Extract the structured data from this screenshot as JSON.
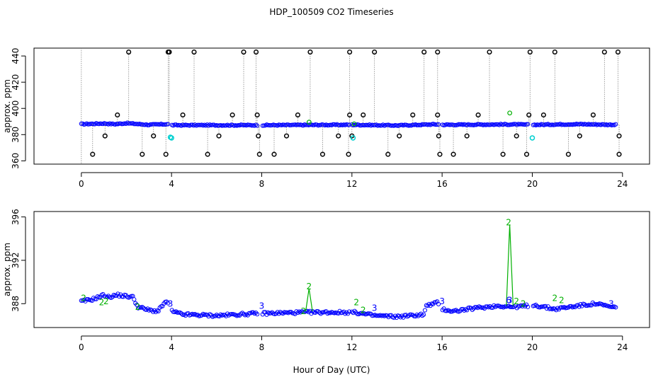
{
  "title": "HDP_100509  CO2 Timeseries",
  "xlabel": "Hour of Day (UTC)",
  "colors": {
    "raw_point": "#000000",
    "cal_point": "#00d0d0",
    "main_point": "#0000ff",
    "flag": "#00b000",
    "spike": "#888888"
  },
  "chart_data": [
    {
      "type": "scatter",
      "ylabel": "approx. ppm",
      "xlim": [
        -2.1,
        25.2
      ],
      "ylim": [
        357.5,
        446
      ],
      "xticks": [
        0,
        4,
        8,
        12,
        16,
        20,
        24
      ],
      "yticks": [
        360,
        380,
        400,
        420,
        440
      ],
      "main_level": [
        [
          0,
          388
        ],
        [
          1,
          388.5
        ],
        [
          1.5,
          388
        ],
        [
          2,
          388.7
        ],
        [
          3,
          387.5
        ],
        [
          3.8,
          388
        ],
        [
          4,
          387.2
        ],
        [
          8,
          387.2
        ],
        [
          12,
          387.5
        ],
        [
          14,
          387
        ],
        [
          15.6,
          387.8
        ],
        [
          15.9,
          387.8
        ],
        [
          16,
          387.5
        ],
        [
          19,
          387.8
        ],
        [
          20,
          387.5
        ],
        [
          22,
          388
        ],
        [
          23.7,
          387.5
        ]
      ],
      "gaps": [
        [
          3.9,
          4.0
        ],
        [
          7.85,
          8.0
        ],
        [
          11.9,
          12.0
        ],
        [
          15.85,
          16.0
        ],
        [
          19.85,
          20.0
        ]
      ],
      "high_points": [
        2.1,
        3.85,
        3.9,
        5.0,
        7.2,
        7.75,
        10.15,
        11.9,
        13.0,
        15.2,
        15.8,
        18.1,
        19.9,
        21.0,
        23.2,
        23.8
      ],
      "low_points": [
        0.5,
        2.7,
        3.75,
        5.6,
        7.9,
        8.55,
        10.7,
        11.85,
        13.6,
        15.9,
        16.5,
        18.7,
        19.75,
        21.6,
        23.85
      ],
      "mid_high_points": [
        1.6,
        4.5,
        6.7,
        7.8,
        9.6,
        11.9,
        12.5,
        14.7,
        15.8,
        17.6,
        19.85,
        20.5,
        22.7
      ],
      "mid_low_points": [
        1.05,
        3.2,
        6.1,
        7.85,
        9.1,
        11.4,
        12.0,
        14.1,
        15.85,
        17.1,
        19.3,
        22.1,
        23.85
      ],
      "cal_points": [
        [
          3.95,
          378
        ],
        [
          4.0,
          377.5
        ],
        [
          12.05,
          377.5
        ],
        [
          20.0,
          377.5
        ]
      ],
      "flag_points": [
        [
          10.1,
          389.5
        ],
        [
          19.0,
          396.5
        ],
        [
          12.1,
          388.2
        ]
      ]
    },
    {
      "type": "scatter",
      "ylabel": "approx. ppm",
      "xlim": [
        -2.1,
        25.2
      ],
      "ylim": [
        385.8,
        396.5
      ],
      "xticks": [
        0,
        4,
        8,
        12,
        16,
        20,
        24
      ],
      "yticks": [
        388,
        392,
        396
      ],
      "main_level": [
        [
          0,
          388.2
        ],
        [
          0.5,
          388.4
        ],
        [
          1,
          388.8
        ],
        [
          1.2,
          388.6
        ],
        [
          1.6,
          388.8
        ],
        [
          2.3,
          388.6
        ],
        [
          2.5,
          387.7
        ],
        [
          3.0,
          387.4
        ],
        [
          3.4,
          387.3
        ],
        [
          3.7,
          388.1
        ],
        [
          3.85,
          388.1
        ],
        [
          4.0,
          387.3
        ],
        [
          4.5,
          387.0
        ],
        [
          6,
          386.9
        ],
        [
          7.8,
          387.1
        ],
        [
          8.0,
          387.1
        ],
        [
          10,
          387.2
        ],
        [
          11.85,
          387.2
        ],
        [
          12.1,
          387.2
        ],
        [
          13,
          386.9
        ],
        [
          14,
          386.8
        ],
        [
          14.6,
          386.9
        ],
        [
          15.2,
          387
        ],
        [
          15.3,
          387.8
        ],
        [
          15.8,
          388.1
        ],
        [
          16.0,
          387.5
        ],
        [
          16.5,
          387.3
        ],
        [
          17.5,
          387.6
        ],
        [
          18.5,
          387.8
        ],
        [
          19.2,
          387.7
        ],
        [
          19.8,
          387.8
        ],
        [
          20.0,
          387.9
        ],
        [
          21.0,
          387.5
        ],
        [
          22,
          387.8
        ],
        [
          22.8,
          388.0
        ],
        [
          23.7,
          387.6
        ]
      ],
      "gaps": [
        [
          3.9,
          4.0
        ],
        [
          7.85,
          8.0
        ],
        [
          11.9,
          12.0
        ],
        [
          15.85,
          16.0
        ],
        [
          19.85,
          20.0
        ]
      ],
      "spike_lines": [
        [
          [
            9.95,
            387.3
          ],
          [
            10.1,
            389.4
          ],
          [
            10.25,
            387.3
          ]
        ],
        [
          [
            18.85,
            387.8
          ],
          [
            19.0,
            395.3
          ],
          [
            19.15,
            387.8
          ]
        ]
      ],
      "label_2": [
        [
          0.1,
          388.5
        ],
        [
          0.9,
          388.1
        ],
        [
          1.1,
          388.2
        ],
        [
          2.5,
          387.7
        ],
        [
          9.85,
          387.3
        ],
        [
          10.1,
          389.6
        ],
        [
          12.2,
          388.1
        ],
        [
          12.5,
          387.4
        ],
        [
          18.95,
          395.5
        ],
        [
          19.3,
          388.2
        ],
        [
          19.6,
          388.0
        ],
        [
          21.0,
          388.5
        ],
        [
          21.3,
          388.3
        ]
      ],
      "label_3": [
        [
          3.95,
          388.0
        ],
        [
          8.0,
          387.8
        ],
        [
          13.0,
          387.6
        ],
        [
          16.0,
          388.2
        ],
        [
          19.0,
          388.3
        ],
        [
          23.5,
          388.0
        ]
      ],
      "label_6": [
        [
          18.95,
          388.3
        ]
      ]
    }
  ]
}
